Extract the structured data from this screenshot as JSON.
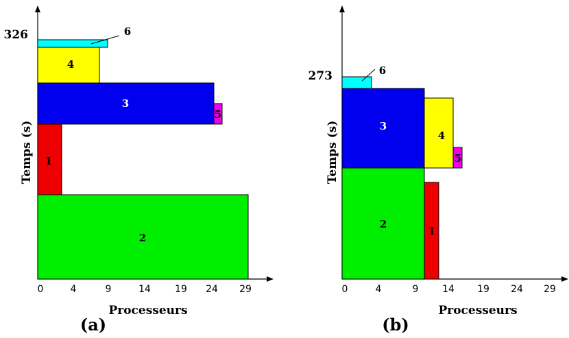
{
  "panels": [
    {
      "id": "a",
      "caption": "(a)",
      "xlabel": "Processeurs",
      "ylabel": "Temps (s)",
      "y_end_label": "326",
      "x_ticks": [
        "0",
        "4",
        "9",
        "14",
        "19",
        "24",
        "29"
      ],
      "tasks": [
        {
          "label": "2",
          "color": "#00ee00",
          "label_color": "#000000"
        },
        {
          "label": "1",
          "color": "#ee0000",
          "label_color": "#000000"
        },
        {
          "label": "3",
          "color": "#0000ee",
          "label_color": "#ffffff"
        },
        {
          "label": "5",
          "color": "#ee00ee",
          "label_color": "#000000"
        },
        {
          "label": "4",
          "color": "#ffff00",
          "label_color": "#000000"
        },
        {
          "label": "6",
          "color": "#00ffff",
          "label_color": "#000000"
        }
      ]
    },
    {
      "id": "b",
      "caption": "(b)",
      "xlabel": "Processeurs",
      "ylabel": "Temps (s)",
      "y_end_label": "273",
      "x_ticks": [
        "0",
        "4",
        "9",
        "14",
        "19",
        "24",
        "29"
      ],
      "tasks": [
        {
          "label": "2",
          "color": "#00ee00",
          "label_color": "#000000"
        },
        {
          "label": "1",
          "color": "#ee0000",
          "label_color": "#000000"
        },
        {
          "label": "3",
          "color": "#0000ee",
          "label_color": "#ffffff"
        },
        {
          "label": "4",
          "color": "#ffff00",
          "label_color": "#000000"
        },
        {
          "label": "5",
          "color": "#ee00ee",
          "label_color": "#000000"
        },
        {
          "label": "6",
          "color": "#00ffff",
          "label_color": "#000000"
        }
      ]
    }
  ]
}
